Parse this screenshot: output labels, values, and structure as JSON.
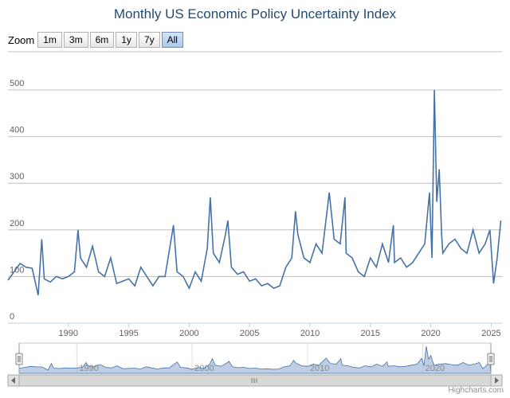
{
  "title": "Monthly US Economic Policy Uncertainty Index",
  "zoom": {
    "label": "Zoom",
    "buttons": [
      "1m",
      "3m",
      "6m",
      "1y",
      "7y",
      "All"
    ],
    "active": "All"
  },
  "credits": "Highcharts.com",
  "colors": {
    "series": "#4572a7",
    "grid": "#c0c0c0",
    "nav_fill": "#a9bddb"
  },
  "chart_data": {
    "type": "line",
    "title": "Monthly US Economic Policy Uncertainty Index",
    "xlabel": "",
    "ylabel": "",
    "xlim": [
      1985.0,
      2025.9
    ],
    "ylim": [
      0,
      500
    ],
    "y_ticks": [
      0,
      100,
      200,
      300,
      400,
      500
    ],
    "x_ticks": [
      1990,
      1995,
      2000,
      2005,
      2010,
      2015,
      2020,
      2025
    ],
    "navigator_ticks": [
      1990,
      2000,
      2010,
      2020
    ],
    "grid": true,
    "series": [
      {
        "name": "",
        "x": [
          1985.0,
          1985.5,
          1986.0,
          1986.5,
          1987.0,
          1987.5,
          1987.8,
          1988.0,
          1988.5,
          1989.0,
          1989.5,
          1990.0,
          1990.5,
          1990.8,
          1991.0,
          1991.5,
          1992.0,
          1992.5,
          1993.0,
          1993.5,
          1994.0,
          1994.5,
          1995.0,
          1995.5,
          1996.0,
          1996.5,
          1997.0,
          1997.5,
          1998.0,
          1998.7,
          1999.0,
          1999.5,
          2000.0,
          2000.5,
          2001.0,
          2001.5,
          2001.75,
          2002.0,
          2002.5,
          2003.0,
          2003.2,
          2003.5,
          2004.0,
          2004.5,
          2005.0,
          2005.5,
          2006.0,
          2006.5,
          2007.0,
          2007.5,
          2008.0,
          2008.5,
          2008.8,
          2009.0,
          2009.5,
          2010.0,
          2010.5,
          2011.0,
          2011.6,
          2012.0,
          2012.5,
          2012.9,
          2013.0,
          2013.5,
          2014.0,
          2014.5,
          2015.0,
          2015.5,
          2016.0,
          2016.5,
          2016.9,
          2017.0,
          2017.5,
          2018.0,
          2018.5,
          2019.0,
          2019.5,
          2019.9,
          2020.1,
          2020.3,
          2020.5,
          2020.7,
          2020.9,
          2021.0,
          2021.5,
          2022.0,
          2022.5,
          2023.0,
          2023.5,
          2024.0,
          2024.5,
          2024.9,
          2025.2,
          2025.5,
          2025.8
        ],
        "values": [
          92,
          110,
          128,
          120,
          118,
          60,
          180,
          95,
          88,
          100,
          95,
          100,
          110,
          200,
          140,
          120,
          165,
          110,
          100,
          140,
          85,
          90,
          95,
          80,
          120,
          100,
          80,
          100,
          100,
          210,
          110,
          100,
          75,
          110,
          90,
          160,
          270,
          150,
          130,
          190,
          220,
          120,
          105,
          110,
          90,
          95,
          80,
          85,
          75,
          80,
          120,
          140,
          240,
          190,
          140,
          130,
          170,
          150,
          280,
          180,
          170,
          270,
          150,
          140,
          110,
          100,
          140,
          120,
          170,
          130,
          210,
          130,
          140,
          120,
          130,
          150,
          170,
          280,
          140,
          500,
          260,
          330,
          190,
          150,
          170,
          180,
          160,
          150,
          200,
          150,
          170,
          200,
          85,
          140,
          220
        ]
      }
    ]
  }
}
